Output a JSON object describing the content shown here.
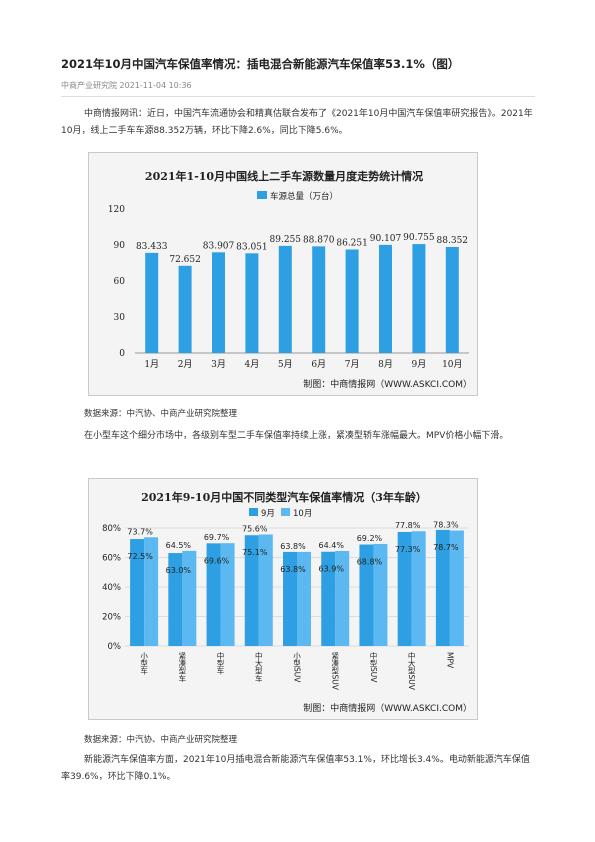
{
  "article": {
    "title": "2021年10月中国汽车保值率情况：插电混合新能源汽车保值率53.1%（图）",
    "source_line": "中商产业研究院 2021-11-04 10:36",
    "para1": "中商情报网讯：近日，中国汽车流通协会和精真估联合发布了《2021年10月中国汽车保值率研究报告》。2021年10月，线上二手车车源88.352万辆，环比下降2.6%，同比下降5.6%。",
    "source1": "数据来源：中汽协、中商产业研究院整理",
    "para2": "在小型车这个细分市场中，各级别车型二手车保值率持续上涨，紧凑型轿车涨幅最大。MPV价格小幅下滑。",
    "source2": "数据来源：中汽协、中商产业研究院整理",
    "para3": "新能源汽车保值率方面，2021年10月插电混合新能源汽车保值率53.1%，环比增长3.4%。电动新能源汽车保值率39.6%，环比下降0.1%。"
  },
  "charts": {
    "watermark": "中商产业研究院",
    "credit": "制图：中商情报网（WWW.ASKCI.COM）",
    "bar_color": "#2e9fe2",
    "bar_color_light": "#5bb8f0"
  },
  "chart_data": [
    {
      "type": "bar",
      "title": "2021年1-10月中国线上二手车源数量月度走势统计情况",
      "legend": [
        "车源总量（万台）"
      ],
      "categories": [
        "1月",
        "2月",
        "3月",
        "4月",
        "5月",
        "6月",
        "7月",
        "8月",
        "9月",
        "10月"
      ],
      "series": [
        {
          "name": "车源总量（万台）",
          "values": [
            83.433,
            72.652,
            83.907,
            83.051,
            89.255,
            88.87,
            86.251,
            90.107,
            90.755,
            88.352
          ],
          "labels": [
            "83.433",
            "72.652",
            "83.907",
            "83.051",
            "89.255",
            "88.870",
            "86.251",
            "90.107",
            "90.755",
            "88.352"
          ]
        }
      ],
      "ylim": [
        0,
        120
      ],
      "yticks": [
        "0",
        "30",
        "60",
        "90",
        "120"
      ]
    },
    {
      "type": "bar",
      "title": "2021年9-10月中国不同类型汽车保值率情况（3年车龄）",
      "legend": [
        "9月",
        "10月"
      ],
      "categories": [
        "小型车",
        "紧凑型车",
        "中型车",
        "中大型车",
        "小型SUV",
        "紧凑型SUV",
        "中型SUV",
        "中大型SUV",
        "MPV"
      ],
      "series": [
        {
          "name": "9月",
          "values": [
            72.5,
            63.0,
            69.6,
            75.1,
            63.8,
            63.9,
            68.8,
            77.3,
            78.7
          ],
          "labels": [
            "72.5%",
            "63.0%",
            "69.6%",
            "75.1%",
            "63.8%",
            "63.9%",
            "68.8%",
            "77.3%",
            "78.7%"
          ]
        },
        {
          "name": "10月",
          "values": [
            73.7,
            64.5,
            69.7,
            75.6,
            63.8,
            64.4,
            69.2,
            77.8,
            78.3
          ],
          "labels": [
            "73.7%",
            "64.5%",
            "69.7%",
            "75.6%",
            "63.8%",
            "64.4%",
            "69.2%",
            "77.8%",
            "78.3%"
          ]
        }
      ],
      "ylim": [
        0,
        80
      ],
      "yticks": [
        "0%",
        "20%",
        "40%",
        "60%",
        "80%"
      ]
    }
  ]
}
